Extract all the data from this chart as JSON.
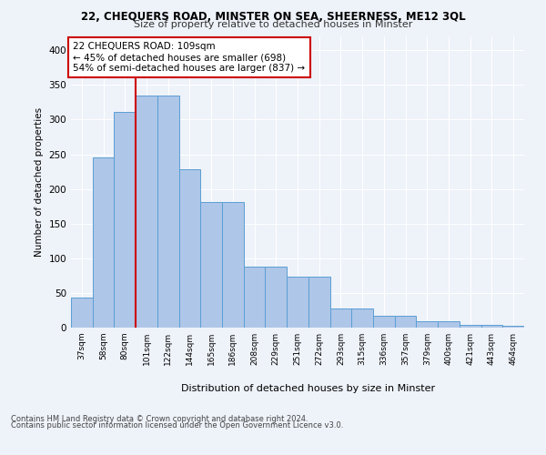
{
  "title1": "22, CHEQUERS ROAD, MINSTER ON SEA, SHEERNESS, ME12 3QL",
  "title2": "Size of property relative to detached houses in Minster",
  "xlabel": "Distribution of detached houses by size in Minster",
  "ylabel": "Number of detached properties",
  "footnote1": "Contains HM Land Registry data © Crown copyright and database right 2024.",
  "footnote2": "Contains public sector information licensed under the Open Government Licence v3.0.",
  "categories": [
    "37sqm",
    "58sqm",
    "80sqm",
    "101sqm",
    "122sqm",
    "144sqm",
    "165sqm",
    "186sqm",
    "208sqm",
    "229sqm",
    "251sqm",
    "272sqm",
    "293sqm",
    "315sqm",
    "336sqm",
    "357sqm",
    "379sqm",
    "400sqm",
    "421sqm",
    "443sqm",
    "464sqm"
  ],
  "bar_heights": [
    43,
    245,
    311,
    335,
    335,
    228,
    181,
    181,
    88,
    88,
    74,
    74,
    28,
    28,
    17,
    17,
    9,
    9,
    4,
    4,
    3
  ],
  "bar_color": "#aec6e8",
  "bar_edge_color": "#5a9fd4",
  "vline_x": 3.0,
  "vline_color": "#cc0000",
  "annotation_text": "22 CHEQUERS ROAD: 109sqm\n← 45% of detached houses are smaller (698)\n54% of semi-detached houses are larger (837) →",
  "annotation_box_color": "#ffffff",
  "annotation_box_edge": "#cc0000",
  "ylim": [
    0,
    420
  ],
  "yticks": [
    0,
    50,
    100,
    150,
    200,
    250,
    300,
    350,
    400
  ],
  "bg_color": "#eef2f9",
  "plot_bg_color": "#eef2f9"
}
